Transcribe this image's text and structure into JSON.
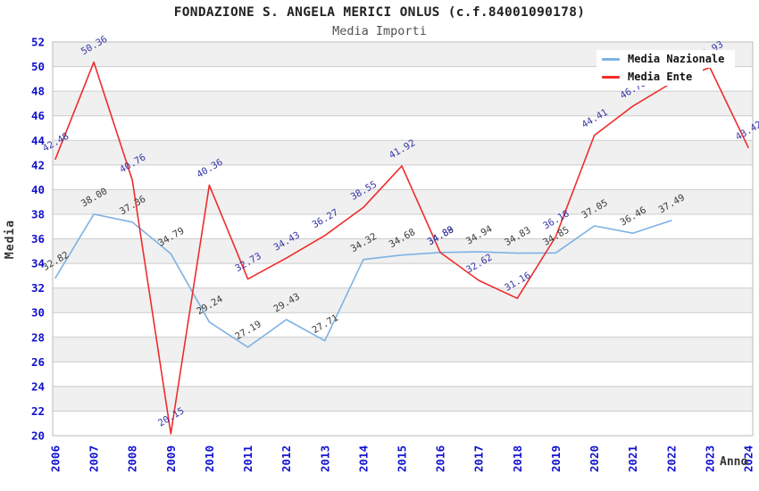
{
  "chart_data": {
    "type": "line",
    "title": "FONDAZIONE S. ANGELA MERICI ONLUS (c.f.84001090178)",
    "subtitle": "Media Importi",
    "xlabel": "Anno",
    "ylabel": "Media",
    "ylim": [
      20,
      52
    ],
    "ytick_step": 2,
    "grid": "horizontal-bands-alternating",
    "legend_position": "top-right",
    "categories": [
      "2006",
      "2007",
      "2008",
      "2009",
      "2010",
      "2011",
      "2012",
      "2013",
      "2014",
      "2015",
      "2016",
      "2017",
      "2018",
      "2019",
      "2020",
      "2021",
      "2022",
      "2023",
      "2024"
    ],
    "series": [
      {
        "name": "Media Nazionale",
        "color": "#7EB2E4",
        "label_color": "#3A3A3A",
        "values": [
          32.82,
          38.0,
          37.36,
          34.79,
          29.24,
          27.19,
          29.43,
          27.71,
          34.32,
          34.68,
          34.89,
          34.94,
          34.83,
          34.85,
          37.05,
          36.46,
          37.49,
          null,
          null
        ]
      },
      {
        "name": "Media Ente",
        "color": "#EE2C2C",
        "label_color": "#3333AA",
        "values": [
          42.48,
          50.36,
          40.76,
          20.15,
          40.36,
          32.73,
          34.43,
          36.27,
          38.55,
          41.92,
          34.88,
          32.62,
          31.16,
          36.18,
          44.41,
          46.78,
          48.66,
          49.93,
          43.42
        ]
      }
    ]
  },
  "colors": {
    "page_bg": "#FFFFFF",
    "band_gray": "#F0F0F0",
    "gridline": "#CCCCCC",
    "plot_border": "#BBBBBB",
    "tick_label_blue": "#1111CC",
    "title_text": "#222222",
    "subtitle_text": "#515151",
    "axis_title_text": "#333333",
    "legend_text": "#111111",
    "legend_bg": "#FFFFFF"
  }
}
